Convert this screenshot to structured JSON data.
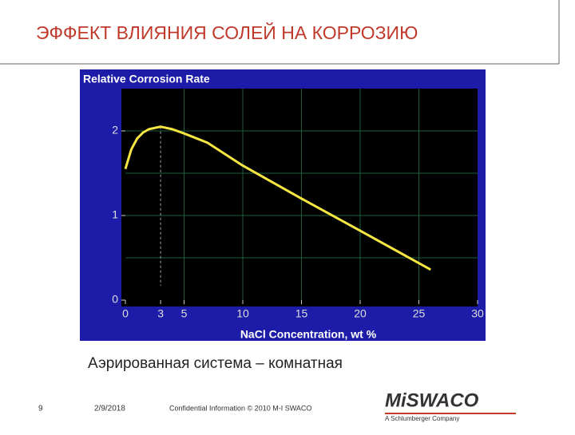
{
  "slide": {
    "title": "ЭФФЕКТ ВЛИЯНИЯ СОЛЕЙ НА КОРРОЗИЮ",
    "caption": "Аэрированная система – комнатная",
    "page_number": "9",
    "date": "2/9/2018",
    "confidential": "Confidential Information © 2010 M-I SWACO",
    "logo": "MiSWACO",
    "logo_sub": "A Schlumberger Company"
  },
  "chart_data": {
    "type": "line",
    "title": "Relative Corrosion Rate",
    "x_label": "NaCl Concentration, wt %",
    "x": [
      0,
      0.5,
      1,
      1.5,
      2,
      3,
      4,
      5,
      7,
      10,
      15,
      20,
      26
    ],
    "series": [
      {
        "name": "Relative Corrosion Rate",
        "color": "#f5e642",
        "values": [
          1.55,
          1.78,
          1.91,
          1.98,
          2.02,
          2.05,
          2.02,
          1.97,
          1.86,
          1.59,
          1.2,
          0.82,
          0.36
        ]
      }
    ],
    "reference_x": 3,
    "xlim": [
      0,
      30
    ],
    "xticks": [
      0,
      3,
      5,
      10,
      15,
      20,
      25,
      30
    ],
    "ylim": [
      0,
      2.5
    ],
    "yticks": [
      0,
      1,
      2
    ],
    "ygrid": [
      0.5,
      1,
      1.5,
      2
    ],
    "xgrid": [
      5,
      10,
      15,
      20,
      25
    ],
    "grid": true
  }
}
